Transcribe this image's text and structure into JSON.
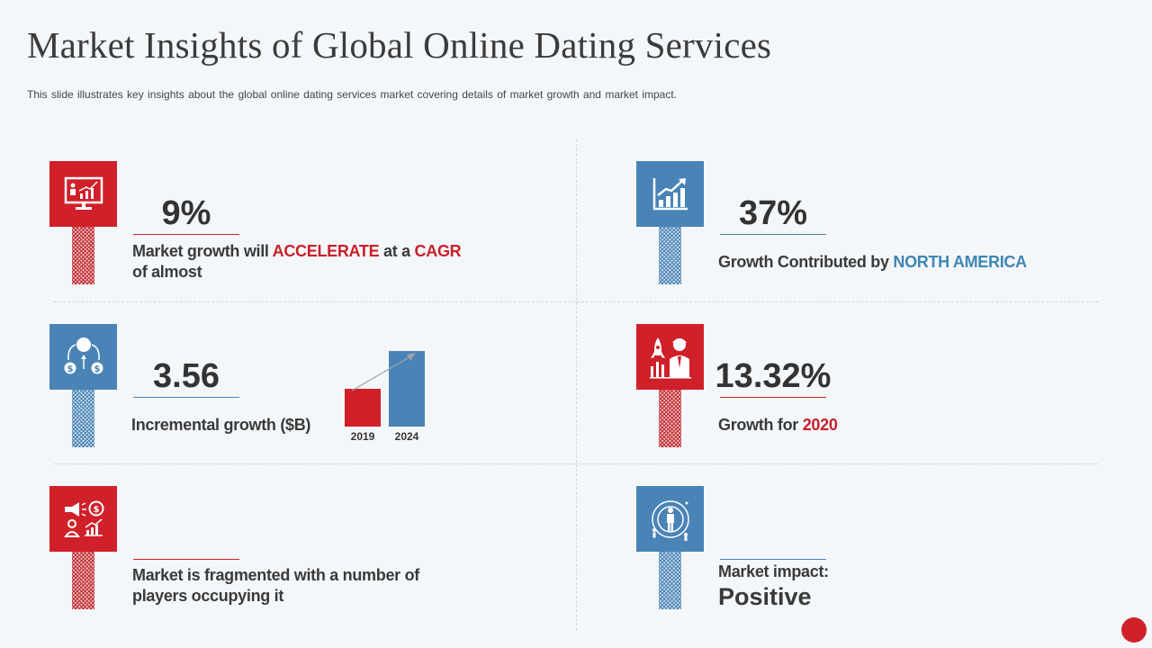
{
  "title": "Market Insights of Global Online Dating Services",
  "subtitle": "This slide illustrates key insights about the global online dating services market covering details of market growth and market impact.",
  "insights": {
    "cagr": {
      "value": "9%",
      "text_a": "Market growth will ",
      "text_b": "ACCELERATE",
      "text_c": " at a ",
      "text_d": "CAGR",
      "text_e": "of almost"
    },
    "north_america": {
      "value": "37%",
      "text_a": "Growth Contributed by ",
      "text_b": "NORTH AMERICA"
    },
    "incremental": {
      "value": "3.56",
      "text": "Incremental growth ($B)"
    },
    "growth_2020": {
      "value": "13.32%",
      "text_a": "Growth for ",
      "text_b": "2020"
    },
    "fragmented": {
      "text_a": "Market is fragmented with a number of",
      "text_b": "players occupying it"
    },
    "impact": {
      "text_a": "Market impact:",
      "text_b": "Positive"
    }
  },
  "chart_data": {
    "type": "bar",
    "categories": [
      "2019",
      "2024"
    ],
    "values": [
      42,
      84
    ],
    "colors": [
      "#d0202a",
      "#4a84b6"
    ],
    "ylim": [
      0,
      84
    ]
  },
  "colors": {
    "red": "#d0202a",
    "blue": "#4a84b6"
  },
  "icons": [
    "presentation-chart-icon",
    "bar-chart-up-icon",
    "money-flow-icon",
    "rocket-analyst-icon",
    "marketing-players-icon",
    "target-audience-icon"
  ]
}
